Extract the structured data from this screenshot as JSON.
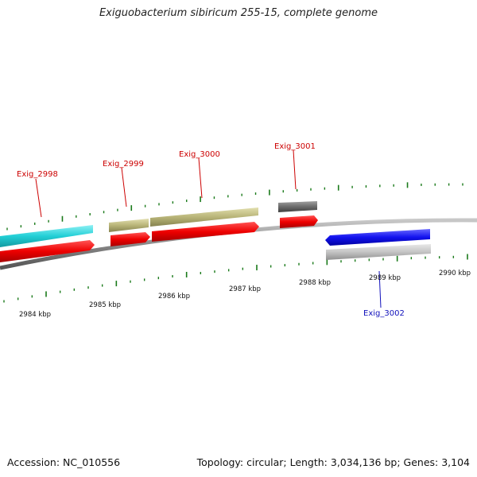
{
  "title": "Exiguobacterium sibiricum 255-15, complete genome",
  "footer": {
    "accession": "Accession: NC_010556",
    "summary": "Topology: circular; Length: 3,034,136 bp; Genes: 3,104"
  },
  "colors": {
    "forward_gene": "#ee0000",
    "cds_cyan": "#22cfd6",
    "cds_khaki": "#b8b478",
    "cds_dark": "#6b6b6b",
    "cds_blue": "#1212ee",
    "cds_gray": "#bcbcbc",
    "backbone": "#888888",
    "tick": "#1a7a1a",
    "label_red": "#cc0000",
    "label_blue": "#1010bb"
  },
  "tick_labels": [
    "2984 kbp",
    "2985 kbp",
    "2986 kbp",
    "2987 kbp",
    "2988 kbp",
    "2989 kbp",
    "2990 kbp"
  ],
  "gene_labels": [
    "Exig_2998",
    "Exig_2999",
    "Exig_3000",
    "Exig_3001",
    "Exig_3002"
  ]
}
